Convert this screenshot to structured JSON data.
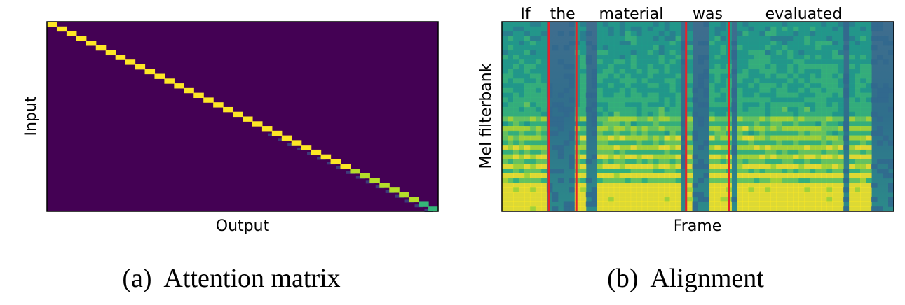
{
  "chart_data": [
    {
      "type": "heatmap",
      "caption": "(a)  Attention matrix",
      "xlabel": "Output",
      "ylabel": "Input",
      "colors": {
        "background": "#440154",
        "peak": "#fde725",
        "mid": "#b5de2b",
        "soft": "#35b779"
      },
      "n_steps": 40
    },
    {
      "type": "heatmap",
      "caption": "(b)  Alignment",
      "xlabel": "Frame",
      "ylabel": "Mel filterbank",
      "words": [
        "If",
        "the",
        "material",
        "was",
        "evaluated"
      ],
      "colors": {
        "boundary": "#e8222a",
        "low": "#3b528b",
        "mid": "#21918c",
        "high": "#fde725"
      }
    }
  ]
}
